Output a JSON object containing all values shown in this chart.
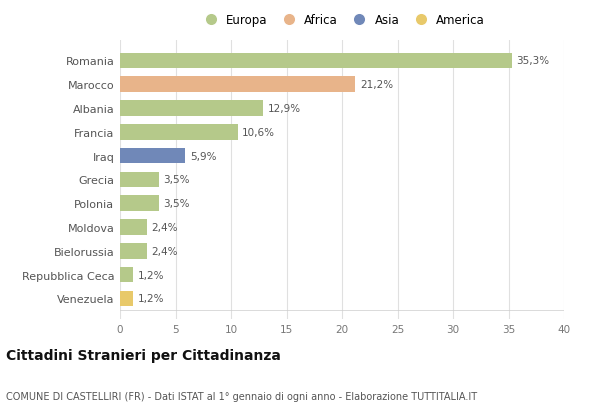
{
  "categories": [
    "Romania",
    "Marocco",
    "Albania",
    "Francia",
    "Iraq",
    "Grecia",
    "Polonia",
    "Moldova",
    "Bielorussia",
    "Repubblica Ceca",
    "Venezuela"
  ],
  "values": [
    35.3,
    21.2,
    12.9,
    10.6,
    5.9,
    3.5,
    3.5,
    2.4,
    2.4,
    1.2,
    1.2
  ],
  "labels": [
    "35,3%",
    "21,2%",
    "12,9%",
    "10,6%",
    "5,9%",
    "3,5%",
    "3,5%",
    "2,4%",
    "2,4%",
    "1,2%",
    "1,2%"
  ],
  "colors": [
    "#b5c98a",
    "#e8b48a",
    "#b5c98a",
    "#b5c98a",
    "#7088b8",
    "#b5c98a",
    "#b5c98a",
    "#b5c98a",
    "#b5c98a",
    "#b5c98a",
    "#e8c96a"
  ],
  "legend": [
    {
      "label": "Europa",
      "color": "#b5c98a"
    },
    {
      "label": "Africa",
      "color": "#e8b48a"
    },
    {
      "label": "Asia",
      "color": "#7088b8"
    },
    {
      "label": "America",
      "color": "#e8c96a"
    }
  ],
  "title1": "Cittadini Stranieri per Cittadinanza",
  "title2": "COMUNE DI CASTELLIRI (FR) - Dati ISTAT al 1° gennaio di ogni anno - Elaborazione TUTTITALIA.IT",
  "xlim": [
    0,
    40
  ],
  "xticks": [
    0,
    5,
    10,
    15,
    20,
    25,
    30,
    35,
    40
  ],
  "background_color": "#ffffff",
  "grid_color": "#e0e0e0",
  "bar_height": 0.65
}
